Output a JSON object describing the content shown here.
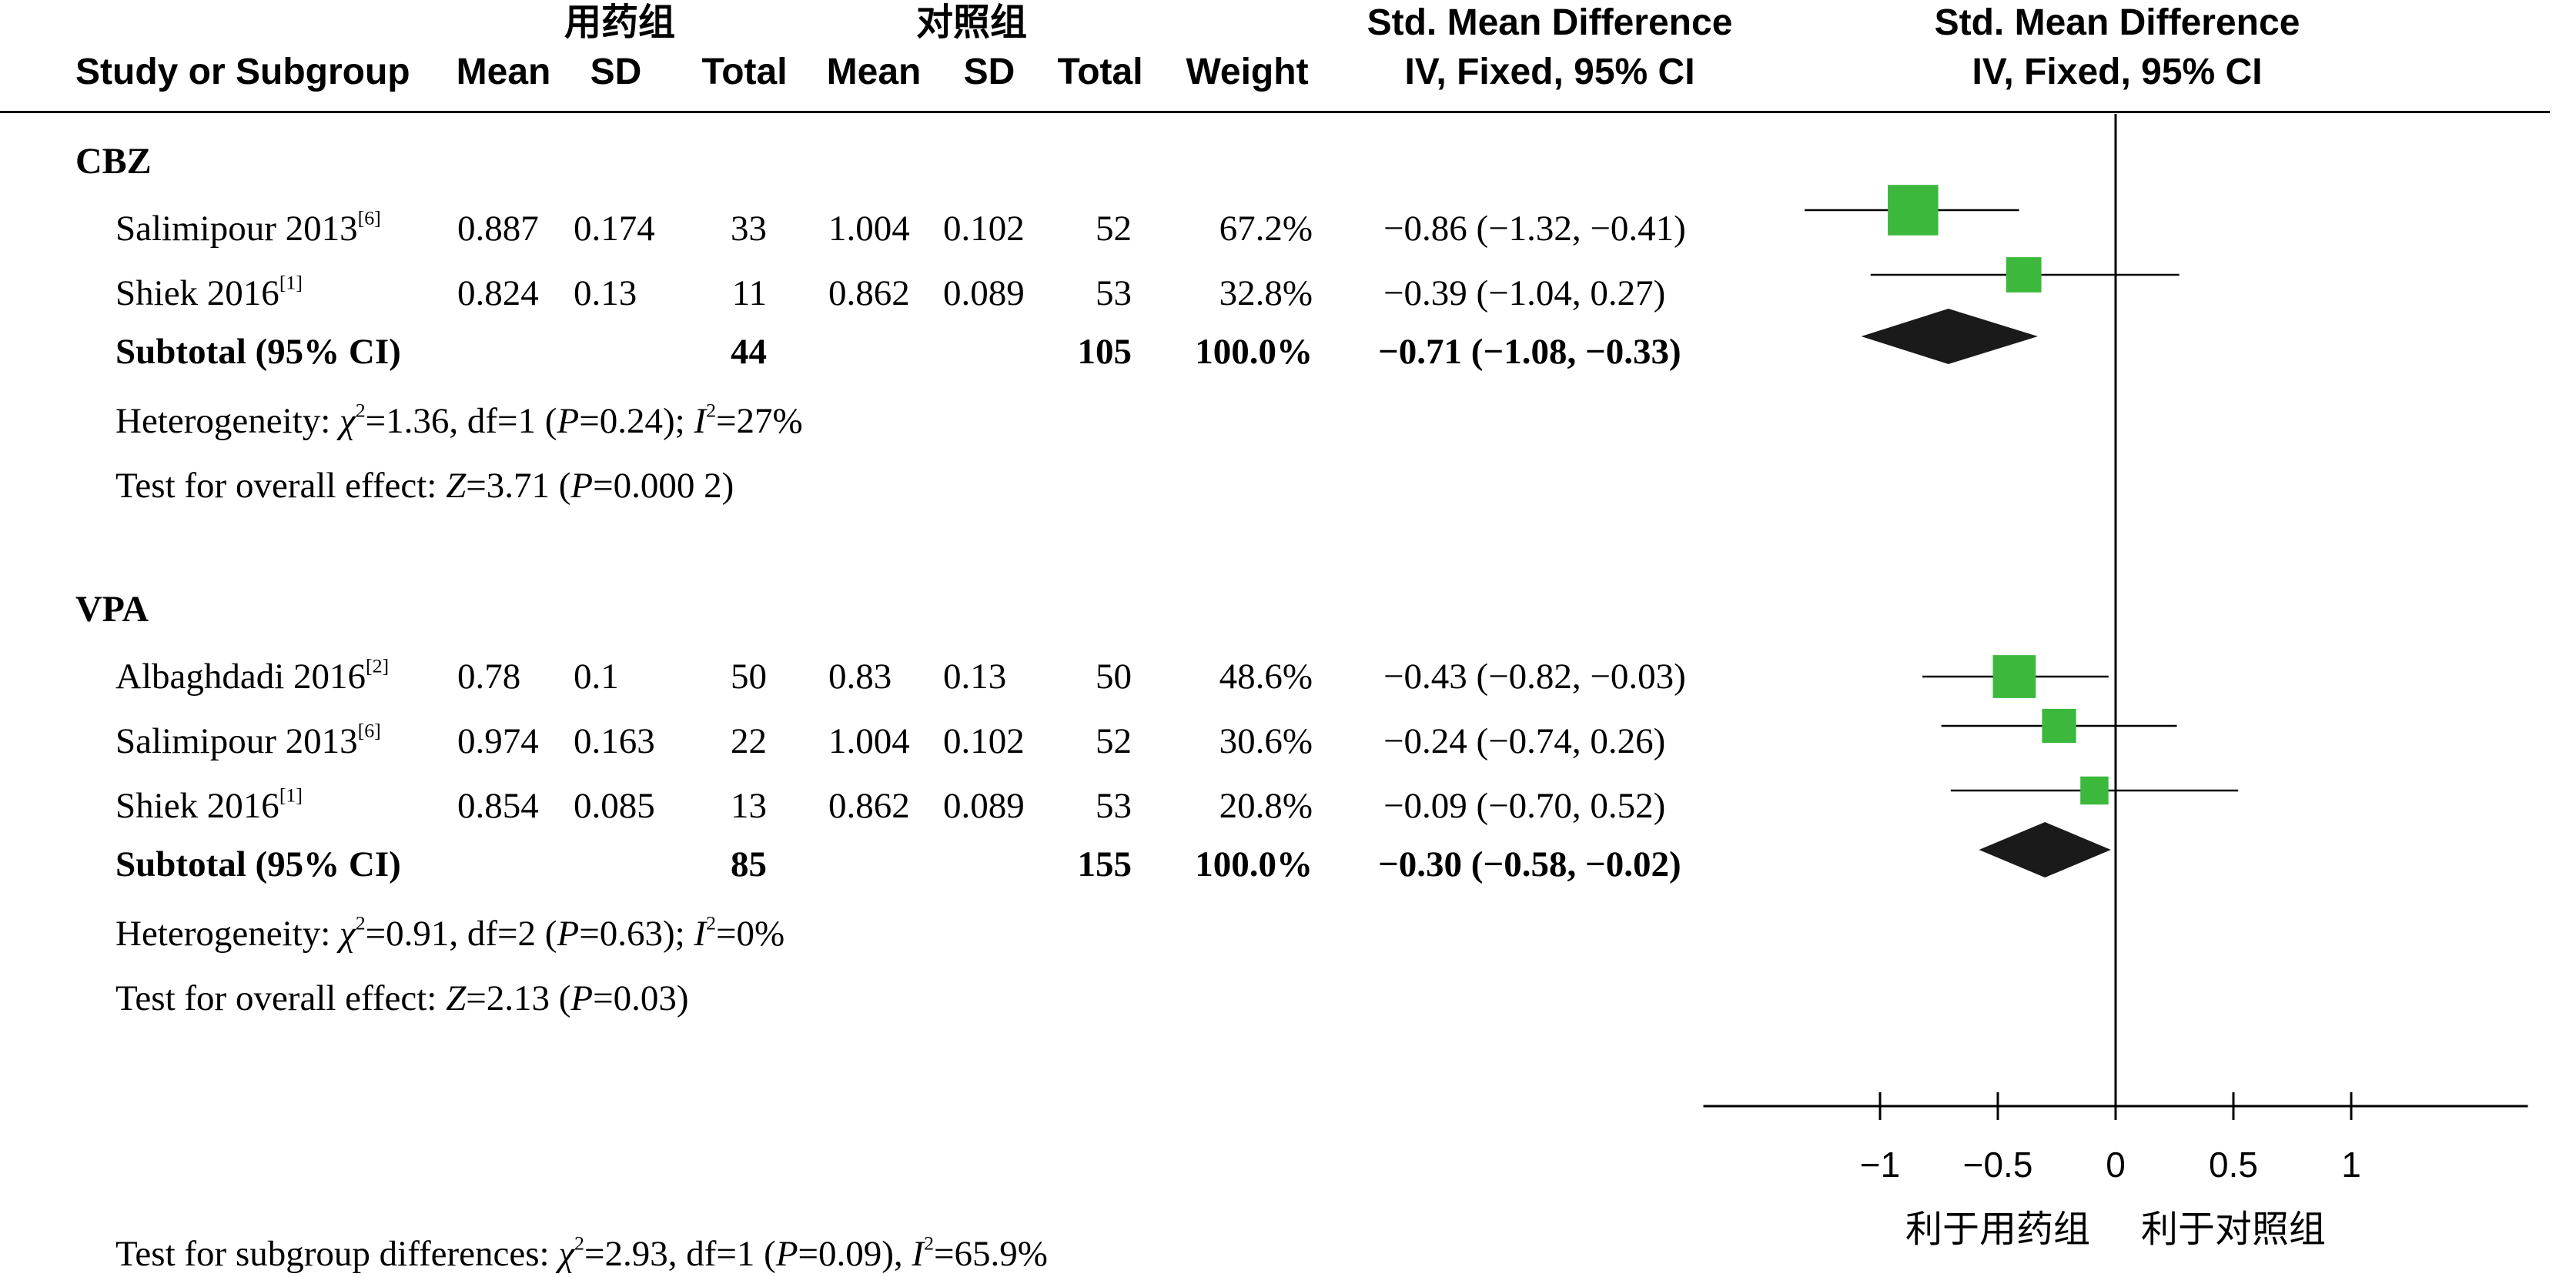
{
  "header": {
    "group1_label": "用药组",
    "group2_label": "对照组",
    "study_col": "Study or Subgroup",
    "mean": "Mean",
    "sd": "SD",
    "total": "Total",
    "weight": "Weight",
    "effect_line1": "Std. Mean Difference",
    "effect_line2": "IV, Fixed, 95% CI",
    "plot_line1": "Std. Mean Difference",
    "plot_line2": "IV, Fixed, 95% CI"
  },
  "subgroups": [
    {
      "name": "CBZ",
      "studies": [
        {
          "name": "Salimipour 2013",
          "ref": "[6]",
          "mean1": "0.887",
          "sd1": "0.174",
          "total1": "33",
          "mean2": "1.004",
          "sd2": "0.102",
          "total2": "52",
          "weight": "67.2%",
          "ci_text": "−0.86 (−1.32, −0.41)"
        },
        {
          "name": "Shiek 2016",
          "ref": "[1]",
          "mean1": "0.824",
          "sd1": "0.13",
          "total1": "11",
          "mean2": "0.862",
          "sd2": "0.089",
          "total2": "53",
          "weight": "32.8%",
          "ci_text": "−0.39 (−1.04, 0.27)"
        }
      ],
      "subtotal": {
        "label": "Subtotal (95% CI)",
        "total1": "44",
        "total2": "105",
        "weight": "100.0%",
        "ci_text": "−0.71 (−1.08, −0.33)"
      },
      "heterogeneity": {
        "prefix": "Heterogeneity: ",
        "chi_symbol": "χ",
        "chi_value": "=1.36, df=1 (",
        "p_symbol": "P",
        "p_value": "=0.24); ",
        "i_symbol": "I",
        "i_value": "=27%"
      },
      "overall": {
        "prefix": "Test for overall effect: ",
        "z_symbol": "Z",
        "z_value": "=3.71 (",
        "p_symbol": "P",
        "p_value": "=0.000 2)"
      }
    },
    {
      "name": "VPA",
      "studies": [
        {
          "name": "Albaghdadi 2016",
          "ref": "[2]",
          "mean1": "0.78",
          "sd1": "0.1",
          "total1": "50",
          "mean2": "0.83",
          "sd2": "0.13",
          "total2": "50",
          "weight": "48.6%",
          "ci_text": "−0.43 (−0.82, −0.03)"
        },
        {
          "name": "Salimipour 2013",
          "ref": "[6]",
          "mean1": "0.974",
          "sd1": "0.163",
          "total1": "22",
          "mean2": "1.004",
          "sd2": "0.102",
          "total2": "52",
          "weight": "30.6%",
          "ci_text": "−0.24 (−0.74, 0.26)"
        },
        {
          "name": "Shiek 2016",
          "ref": "[1]",
          "mean1": "0.854",
          "sd1": "0.085",
          "total1": "13",
          "mean2": "0.862",
          "sd2": "0.089",
          "total2": "53",
          "weight": "20.8%",
          "ci_text": "−0.09 (−0.70, 0.52)"
        }
      ],
      "subtotal": {
        "label": "Subtotal (95% CI)",
        "total1": "85",
        "total2": "155",
        "weight": "100.0%",
        "ci_text": "−0.30 (−0.58, −0.02)"
      },
      "heterogeneity": {
        "prefix": "Heterogeneity: ",
        "chi_symbol": "χ",
        "chi_value": "=0.91, df=2 (",
        "p_symbol": "P",
        "p_value": "=0.63); ",
        "i_symbol": "I",
        "i_value": "=0%"
      },
      "overall": {
        "prefix": "Test for overall effect: ",
        "z_symbol": "Z",
        "z_value": "=2.13 (",
        "p_symbol": "P",
        "p_value": "=0.03)"
      }
    }
  ],
  "subgroup_diff": {
    "prefix": "Test for subgroup differences: ",
    "chi_symbol": "χ",
    "chi_value": "=2.93, df=1 (",
    "p_symbol": "P",
    "p_value": "=0.09), ",
    "i_symbol": "I",
    "i_value": "=65.9%"
  },
  "chart_data": {
    "type": "forest",
    "title": "Std. Mean Difference IV, Fixed, 95% CI",
    "xlim": [
      -1.75,
      1.75
    ],
    "ticks": [
      -1,
      -0.5,
      0,
      0.5,
      1
    ],
    "tick_labels": [
      "−1",
      "−0.5",
      "0",
      "0.5",
      "1"
    ],
    "left_label": "利于用药组",
    "right_label": "利于对照组",
    "marker_color": "#3cb93c",
    "diamond_color": "#1a1a1a",
    "studies": [
      {
        "group": "CBZ",
        "name": "Salimipour 2013",
        "est": -0.86,
        "lo": -1.32,
        "hi": -0.41,
        "weight": 67.2
      },
      {
        "group": "CBZ",
        "name": "Shiek 2016",
        "est": -0.39,
        "lo": -1.04,
        "hi": 0.27,
        "weight": 32.8
      },
      {
        "group": "VPA",
        "name": "Albaghdadi 2016",
        "est": -0.43,
        "lo": -0.82,
        "hi": -0.03,
        "weight": 48.6
      },
      {
        "group": "VPA",
        "name": "Salimipour 2013",
        "est": -0.24,
        "lo": -0.74,
        "hi": 0.26,
        "weight": 30.6
      },
      {
        "group": "VPA",
        "name": "Shiek 2016",
        "est": -0.09,
        "lo": -0.7,
        "hi": 0.52,
        "weight": 20.8
      }
    ],
    "subtotals": [
      {
        "group": "CBZ",
        "est": -0.71,
        "lo": -1.08,
        "hi": -0.33
      },
      {
        "group": "VPA",
        "est": -0.3,
        "lo": -0.58,
        "hi": -0.02
      }
    ]
  }
}
